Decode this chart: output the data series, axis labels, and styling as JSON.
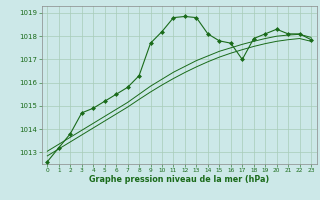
{
  "x": [
    0,
    1,
    2,
    3,
    4,
    5,
    6,
    7,
    8,
    9,
    10,
    11,
    12,
    13,
    14,
    15,
    16,
    17,
    18,
    19,
    20,
    21,
    22,
    23
  ],
  "y_main": [
    1012.6,
    1013.2,
    1013.8,
    1014.7,
    1014.9,
    1015.2,
    1015.5,
    1015.8,
    1016.3,
    1017.7,
    1018.2,
    1018.8,
    1018.85,
    1018.8,
    1018.1,
    1017.8,
    1017.7,
    1017.0,
    1017.9,
    1018.1,
    1018.3,
    1018.1,
    1018.1,
    1017.85
  ],
  "y_smooth1": [
    1013.05,
    1013.35,
    1013.65,
    1013.95,
    1014.25,
    1014.55,
    1014.85,
    1015.15,
    1015.5,
    1015.85,
    1016.15,
    1016.45,
    1016.7,
    1016.95,
    1017.15,
    1017.35,
    1017.5,
    1017.65,
    1017.78,
    1017.9,
    1018.0,
    1018.05,
    1018.08,
    1017.95
  ],
  "y_smooth2": [
    1012.85,
    1013.15,
    1013.45,
    1013.75,
    1014.05,
    1014.35,
    1014.65,
    1014.95,
    1015.28,
    1015.6,
    1015.9,
    1016.18,
    1016.44,
    1016.68,
    1016.9,
    1017.1,
    1017.27,
    1017.42,
    1017.56,
    1017.68,
    1017.78,
    1017.85,
    1017.9,
    1017.78
  ],
  "line_color": "#1a6b1a",
  "bg_color": "#cce8e8",
  "grid_color": "#a8ccb8",
  "axis_label_color": "#1a6b1a",
  "xlabel": "Graphe pression niveau de la mer (hPa)",
  "ylim": [
    1012.5,
    1019.3
  ],
  "xlim": [
    -0.5,
    23.5
  ],
  "yticks": [
    1013,
    1014,
    1015,
    1016,
    1017,
    1018,
    1019
  ],
  "xticks": [
    0,
    1,
    2,
    3,
    4,
    5,
    6,
    7,
    8,
    9,
    10,
    11,
    12,
    13,
    14,
    15,
    16,
    17,
    18,
    19,
    20,
    21,
    22,
    23
  ]
}
